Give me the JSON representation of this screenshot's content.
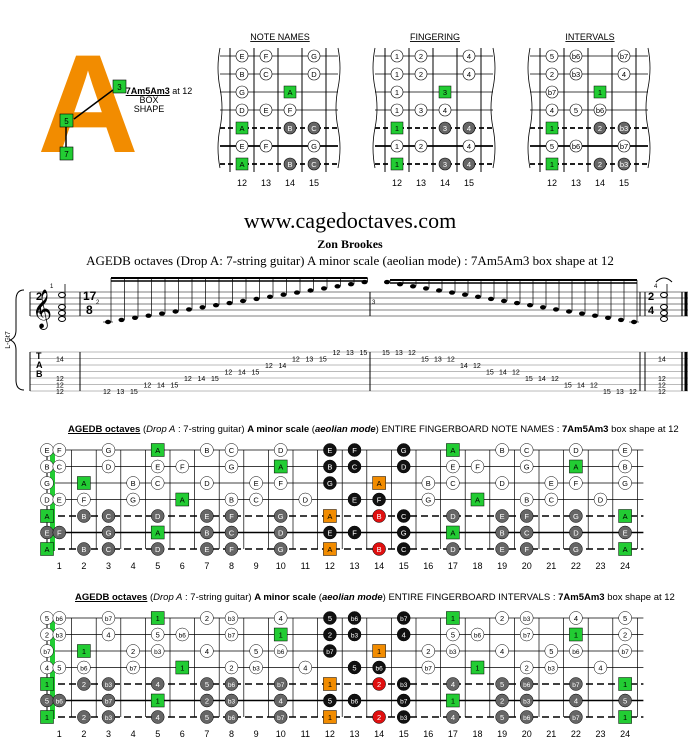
{
  "logo": {
    "letter": "A",
    "color": "#f28c00"
  },
  "shape": {
    "name": "7Am5Am3",
    "at": "at 12",
    "box": "BOX",
    "shape": "SHAPE",
    "marks": [
      "3",
      "5",
      "7"
    ]
  },
  "mini_diagrams": [
    {
      "title": "NOTE NAMES",
      "rows": [
        [
          "E",
          "F",
          "",
          "G"
        ],
        [
          "B",
          "C",
          "",
          "D"
        ],
        [
          "G",
          "",
          "A",
          ""
        ],
        [
          "D",
          "E",
          "F",
          ""
        ],
        [
          "A",
          "",
          "B",
          "C"
        ],
        [
          "E",
          "F",
          "",
          "G"
        ],
        [
          "A",
          "",
          "B",
          "C"
        ]
      ]
    },
    {
      "title": "FINGERING",
      "rows": [
        [
          "1",
          "2",
          "",
          "4"
        ],
        [
          "1",
          "2",
          "",
          "4"
        ],
        [
          "1",
          "",
          "3",
          ""
        ],
        [
          "1",
          "3",
          "4",
          ""
        ],
        [
          "1",
          "",
          "3",
          "4"
        ],
        [
          "1",
          "2",
          "",
          "4"
        ],
        [
          "1",
          "",
          "3",
          "4"
        ]
      ]
    },
    {
      "title": "INTERVALS",
      "rows": [
        [
          "5",
          "b6",
          "",
          "b7"
        ],
        [
          "2",
          "b3",
          "",
          "4"
        ],
        [
          "b7",
          "",
          "1",
          ""
        ],
        [
          "4",
          "5",
          "b6",
          ""
        ],
        [
          "1",
          "",
          "2",
          "b3"
        ],
        [
          "5",
          "b6",
          "",
          "b7"
        ],
        [
          "1",
          "",
          "2",
          "b3"
        ]
      ]
    }
  ],
  "mini_frets": [
    "12",
    "13",
    "14",
    "15"
  ],
  "site": "www.cagedoctaves.com",
  "author": "Zon Brookes",
  "description": "AGEDB octaves (Drop A: 7-string guitar) A minor scale (aeolian mode) : 7Am5Am3 box shape at 12",
  "notation": {
    "side_label": "L-Gt7",
    "time_sig_start": [
      "2",
      "4"
    ],
    "time_sig_mid": [
      "17",
      "8"
    ],
    "time_sig_end": [
      "2",
      "4"
    ],
    "measure_numbers": [
      "1",
      "2",
      "3",
      "4"
    ],
    "tab_letters": [
      "T",
      "A",
      "B"
    ],
    "m1_tab": [
      "14",
      "12",
      "12",
      "12"
    ],
    "m2_tab": [
      {
        "s": 6,
        "f": "12"
      },
      {
        "s": 6,
        "f": "13"
      },
      {
        "s": 6,
        "f": "15"
      },
      {
        "s": 5,
        "f": "12"
      },
      {
        "s": 5,
        "f": "14"
      },
      {
        "s": 5,
        "f": "15"
      },
      {
        "s": 4,
        "f": "12"
      },
      {
        "s": 4,
        "f": "14"
      },
      {
        "s": 4,
        "f": "15"
      },
      {
        "s": 3,
        "f": "12"
      },
      {
        "s": 3,
        "f": "14"
      },
      {
        "s": 3,
        "f": "15"
      },
      {
        "s": 2,
        "f": "12"
      },
      {
        "s": 2,
        "f": "14"
      },
      {
        "s": 1,
        "f": "12"
      },
      {
        "s": 1,
        "f": "13"
      },
      {
        "s": 1,
        "f": "15"
      },
      {
        "s": 0,
        "f": "12"
      },
      {
        "s": 0,
        "f": "13"
      },
      {
        "s": 0,
        "f": "15"
      }
    ],
    "m3_tab": [
      {
        "s": 0,
        "f": "15"
      },
      {
        "s": 0,
        "f": "13"
      },
      {
        "s": 0,
        "f": "12"
      },
      {
        "s": 1,
        "f": "15"
      },
      {
        "s": 1,
        "f": "13"
      },
      {
        "s": 1,
        "f": "12"
      },
      {
        "s": 2,
        "f": "14"
      },
      {
        "s": 2,
        "f": "12"
      },
      {
        "s": 3,
        "f": "15"
      },
      {
        "s": 3,
        "f": "14"
      },
      {
        "s": 3,
        "f": "12"
      },
      {
        "s": 4,
        "f": "15"
      },
      {
        "s": 4,
        "f": "14"
      },
      {
        "s": 4,
        "f": "12"
      },
      {
        "s": 5,
        "f": "15"
      },
      {
        "s": 5,
        "f": "14"
      },
      {
        "s": 5,
        "f": "12"
      },
      {
        "s": 6,
        "f": "15"
      },
      {
        "s": 6,
        "f": "13"
      },
      {
        "s": 6,
        "f": "12"
      }
    ],
    "m4_tab": [
      "14",
      "12",
      "12",
      "12"
    ]
  },
  "fb_notes_title": {
    "a": "AGEDB octaves",
    "b": "Drop A",
    "c": " : 7-string guitar) ",
    "d": "A minor scale",
    "e": "aeolian mode",
    "f": ") ENTIRE FINGERBOARD NOTE NAMES : ",
    "g": "7Am5Am3",
    "h": " box shape at 12"
  },
  "fb_int_title": {
    "a": "AGEDB octaves",
    "b": "Drop A",
    "c": " : 7-string guitar) ",
    "d": "A minor scale",
    "e": "aeolian mode",
    "f": ") ENTIRE FINGERBOARD INTERVALS : ",
    "g": "7Am5Am3",
    "h": " box shape at 12"
  },
  "fret_numbers": [
    "1",
    "2",
    "3",
    "4",
    "5",
    "6",
    "7",
    "8",
    "9",
    "10",
    "11",
    "12",
    "13",
    "14",
    "15",
    "16",
    "17",
    "18",
    "19",
    "20",
    "21",
    "22",
    "23",
    "24"
  ],
  "legend_colors": {
    "root": "#22cc33",
    "box_root": "#f28c00",
    "highlight": "#111111",
    "fifth_red": "#e01010",
    "other": "#ffffff",
    "dark": "#666666"
  }
}
